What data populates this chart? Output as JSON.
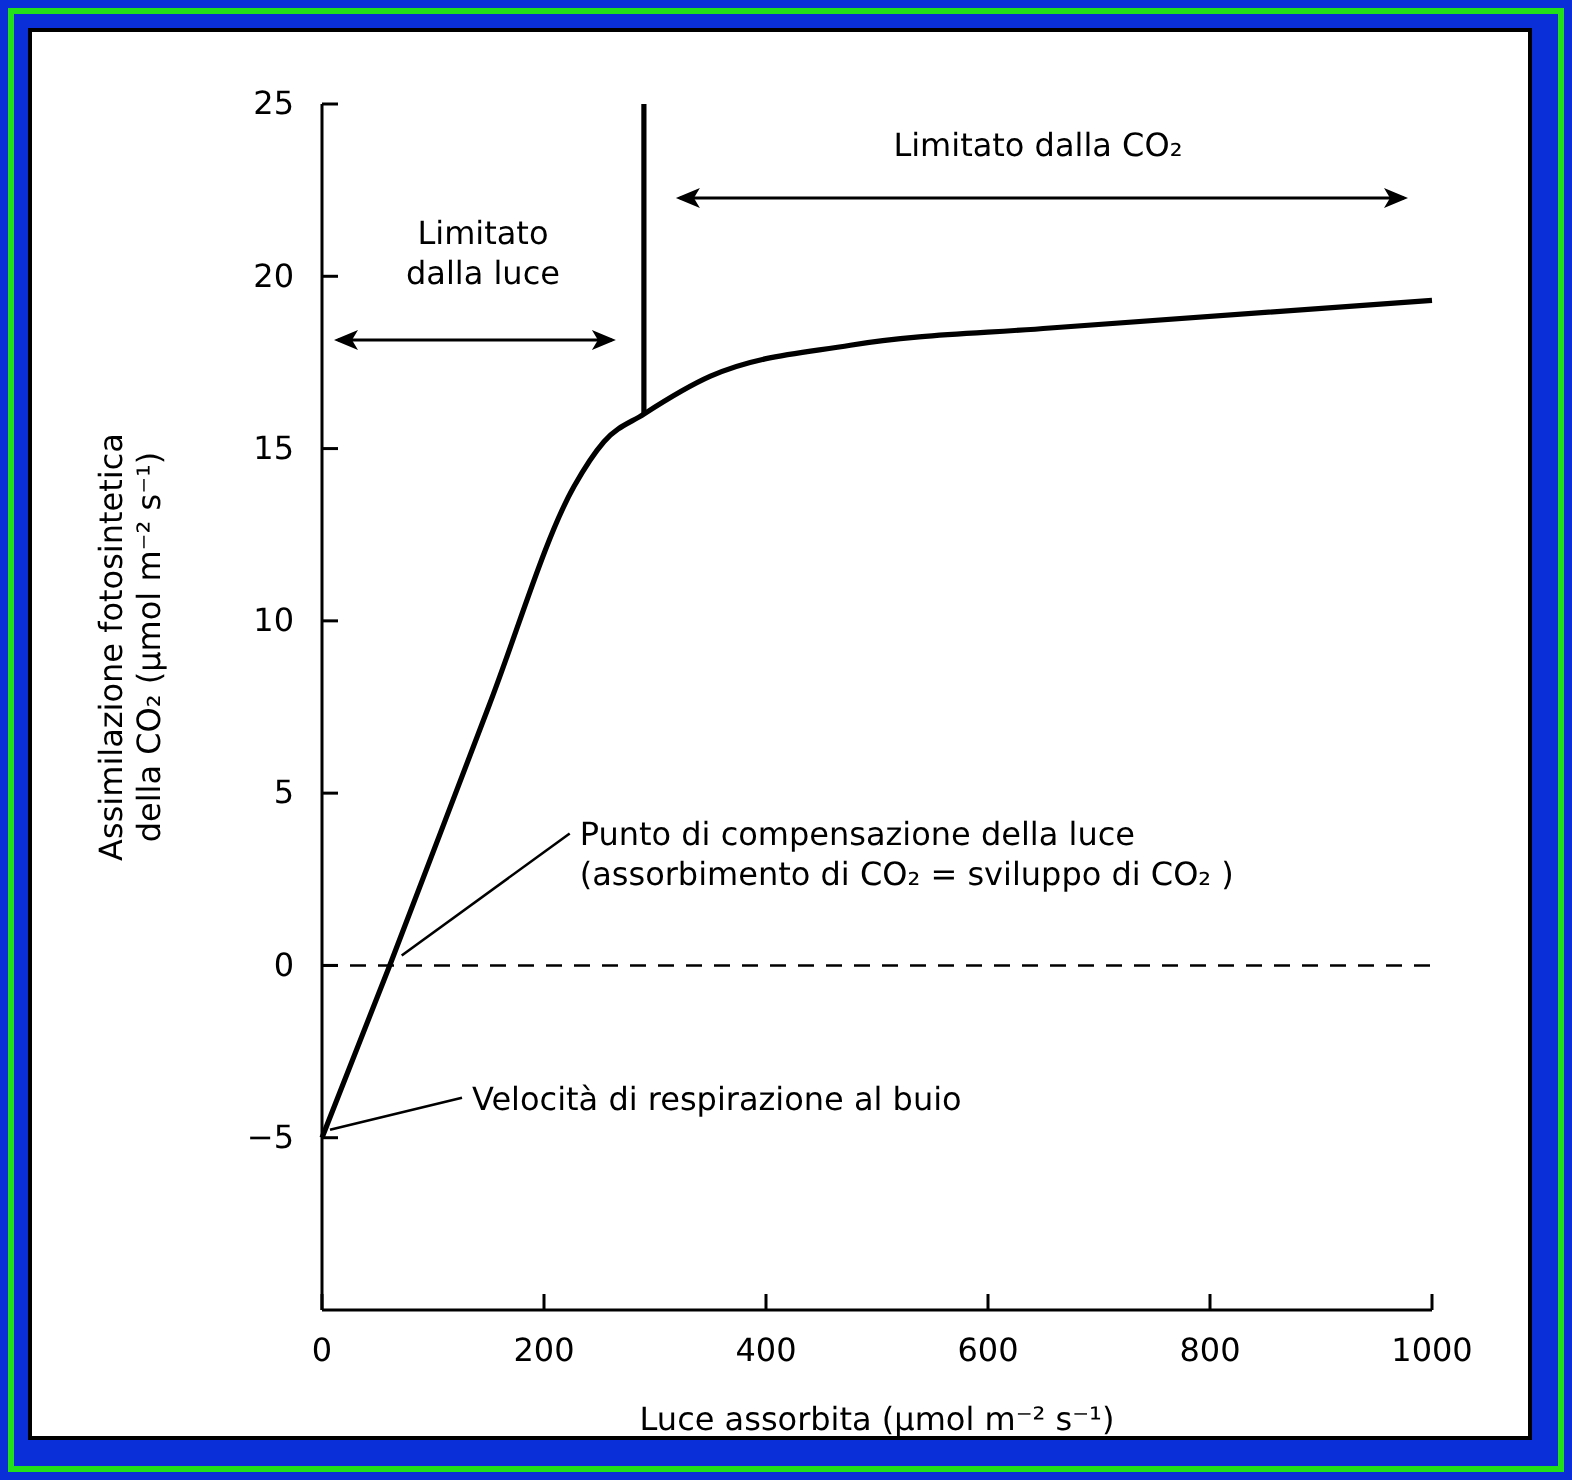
{
  "chart_data": {
    "type": "line",
    "xlabel": "Luce assorbita (μmol m⁻² s⁻¹)",
    "ylabel": "Assimilazione fotosintetica\ndella CO₂ (μmol m⁻² s⁻¹)",
    "xlim": [
      0,
      1000
    ],
    "ylim": [
      -10,
      25
    ],
    "xticks": [
      0,
      200,
      400,
      600,
      800,
      1000
    ],
    "yticks": [
      {
        "value": -5,
        "label": "−5"
      },
      0,
      5,
      10,
      15,
      20,
      25
    ],
    "series": [
      {
        "color": "#000000",
        "x": [
          0,
          61,
          150,
          227,
          254,
          290,
          350,
          476,
          656,
          1000
        ],
        "values": [
          -5,
          0,
          7.5,
          13.9,
          15.2,
          16.0,
          17.1,
          18.0,
          18.5,
          19.3
        ]
      },
      {
        "color": "#000000",
        "x": [
          290,
          290
        ],
        "values": [
          16.0,
          25
        ]
      }
    ],
    "ref_lines": [
      {
        "axis": "y",
        "value": 0,
        "line_style": "dashed",
        "color": "#000000"
      }
    ],
    "annotations": [
      "Limitato\ndalla luce",
      "Limitato dalla CO₂",
      {
        "text": "Punto di compensazione della luce\n(assorbimento di CO₂ = sviluppo di CO₂ )",
        "x": 61,
        "y": 0
      },
      {
        "text": "Velocità di respirazione al buio",
        "x": 0,
        "y": -5
      }
    ]
  }
}
